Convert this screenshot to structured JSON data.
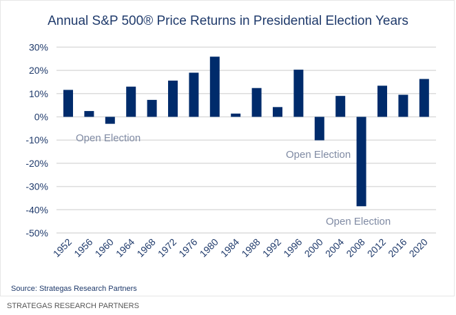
{
  "chart_data": {
    "type": "bar",
    "title": "Annual S&P 500® Price Returns in Presidential Election Years",
    "xlabel": "",
    "ylabel": "",
    "ylim": [
      -50,
      30
    ],
    "yticks": [
      "30%",
      "20%",
      "10%",
      "0%",
      "-10%",
      "-20%",
      "-30%",
      "-40%",
      "-50%"
    ],
    "grid": true,
    "categories": [
      "1952",
      "1956",
      "1960",
      "1964",
      "1968",
      "1972",
      "1976",
      "1980",
      "1984",
      "1988",
      "1992",
      "1996",
      "2000",
      "2004",
      "2008",
      "2012",
      "2016",
      "2020"
    ],
    "values": [
      11.6,
      2.5,
      -3.0,
      13.0,
      7.3,
      15.6,
      19.0,
      25.9,
      1.4,
      12.4,
      4.2,
      20.3,
      -10.1,
      9.0,
      -38.5,
      13.4,
      9.5,
      16.3
    ],
    "bar_color": "#002b6b",
    "annotations": [
      {
        "text": "Open Election",
        "category": "1960"
      },
      {
        "text": "Open Election",
        "category": "2000"
      },
      {
        "text": "Open Election",
        "category": "2008"
      }
    ]
  },
  "source": "Source: Strategas Research Partners",
  "credit": "STRATEGAS RESEARCH PARTNERS"
}
